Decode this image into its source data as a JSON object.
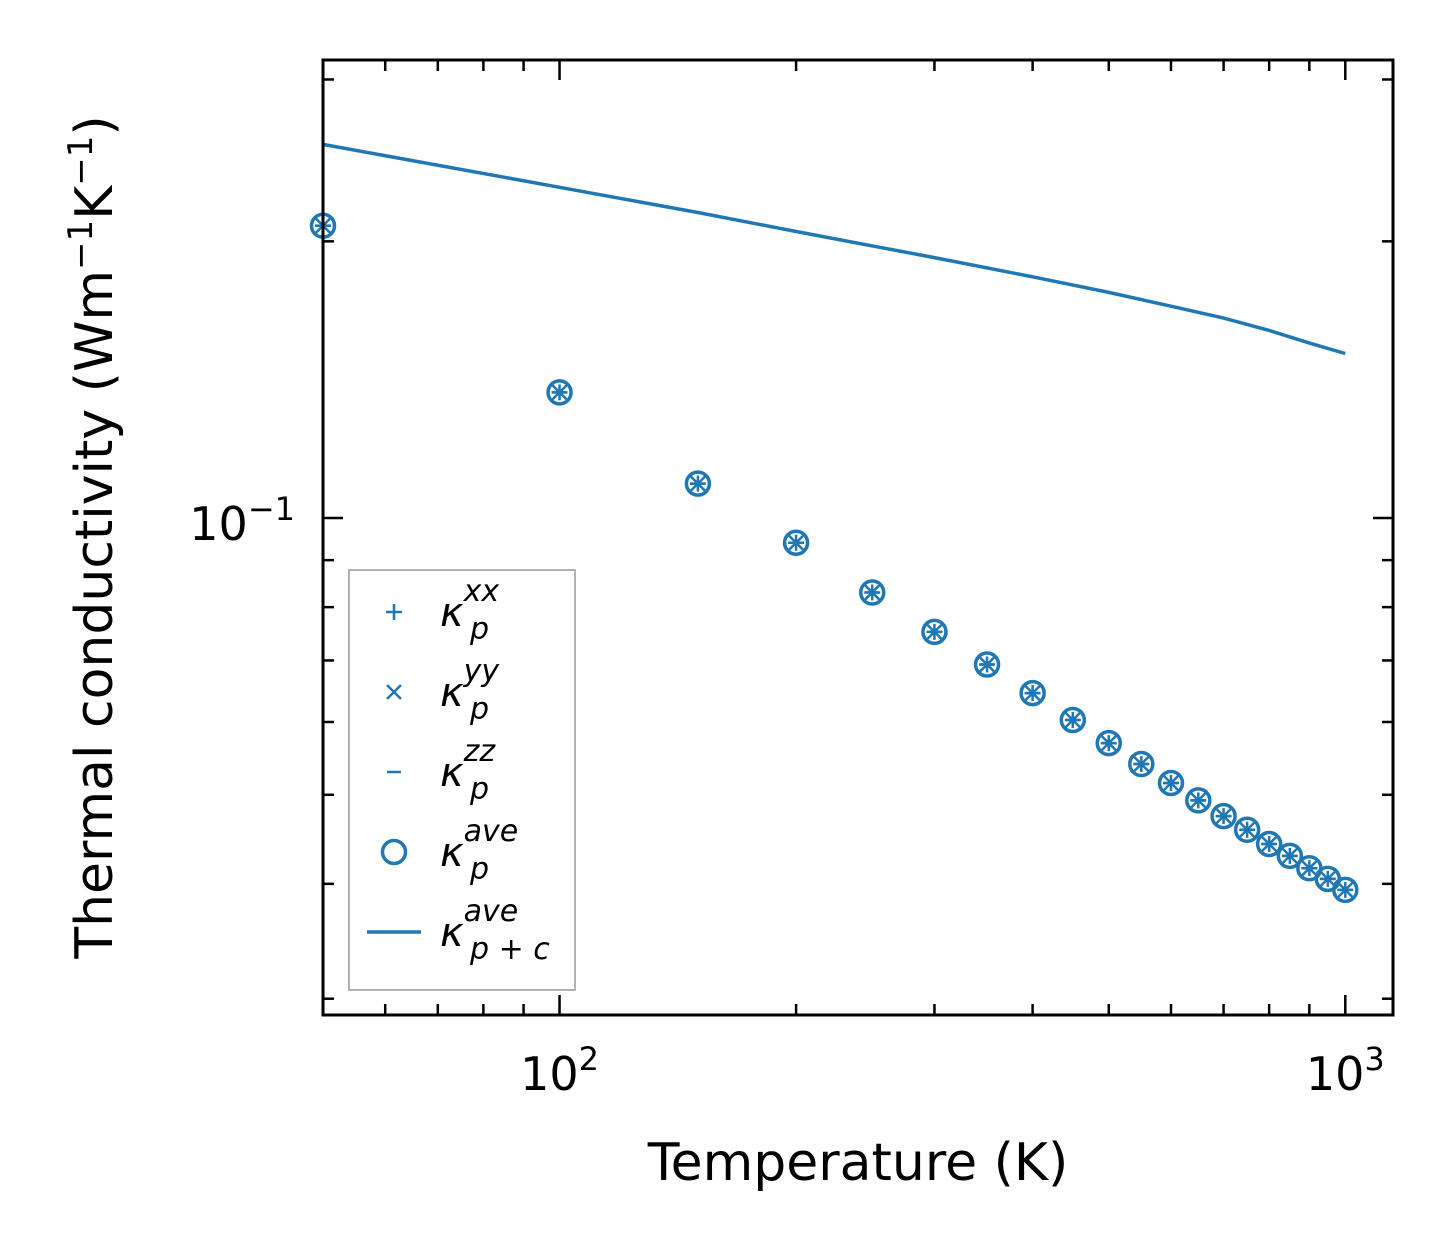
{
  "chart_data": {
    "type": "scatter",
    "xscale": "log",
    "yscale": "log",
    "xlim": [
      50,
      1150
    ],
    "ylim": [
      0.0288,
      0.315
    ],
    "xlabel": "Temperature (K)",
    "ylabel": "Thermal conductivity (Wm",
    "ylabel_unit_sup1": "−1",
    "ylabel_unit_mid": "K",
    "ylabel_unit_sup2": "−1",
    "ylabel_unit_end": ")",
    "x_ticks": [
      {
        "value": 100,
        "base": "10",
        "exp": "2"
      },
      {
        "value": 1000,
        "base": "10",
        "exp": "3"
      }
    ],
    "y_ticks": [
      {
        "value": 0.1,
        "base": "10",
        "exp": "−1"
      }
    ],
    "color": "#1f77b4",
    "x": [
      50,
      100,
      150,
      200,
      250,
      300,
      350,
      400,
      450,
      500,
      550,
      600,
      650,
      700,
      750,
      800,
      850,
      900,
      950,
      1000
    ],
    "series": [
      {
        "name": "kp_xx",
        "label_base": "κ",
        "label_sub": "p",
        "label_sup": "xx",
        "marker": "plus",
        "values": [
          0.208,
          0.137,
          0.109,
          0.094,
          0.083,
          0.0752,
          0.0693,
          0.0645,
          0.0603,
          0.0569,
          0.054,
          0.0515,
          0.0493,
          0.0474,
          0.0458,
          0.0442,
          0.0429,
          0.0416,
          0.0405,
          0.0394
        ]
      },
      {
        "name": "kp_yy",
        "label_base": "κ",
        "label_sub": "p",
        "label_sup": "yy",
        "marker": "x",
        "values": [
          0.208,
          0.137,
          0.109,
          0.094,
          0.083,
          0.0752,
          0.0693,
          0.0645,
          0.0603,
          0.0569,
          0.054,
          0.0515,
          0.0493,
          0.0474,
          0.0458,
          0.0442,
          0.0429,
          0.0416,
          0.0405,
          0.0394
        ]
      },
      {
        "name": "kp_zz",
        "label_base": "κ",
        "label_sub": "p",
        "label_sup": "zz",
        "marker": "hline",
        "values": [
          0.208,
          0.137,
          0.109,
          0.094,
          0.083,
          0.0752,
          0.0693,
          0.0645,
          0.0603,
          0.0569,
          0.054,
          0.0515,
          0.0493,
          0.0474,
          0.0458,
          0.0442,
          0.0429,
          0.0416,
          0.0405,
          0.0394
        ]
      },
      {
        "name": "kp_ave",
        "label_base": "κ",
        "label_sub": "p",
        "label_sup": "ave",
        "marker": "circle",
        "values": [
          0.208,
          0.137,
          0.109,
          0.094,
          0.083,
          0.0752,
          0.0693,
          0.0645,
          0.0603,
          0.0569,
          0.054,
          0.0515,
          0.0493,
          0.0474,
          0.0458,
          0.0442,
          0.0429,
          0.0416,
          0.0405,
          0.0394
        ]
      },
      {
        "name": "kpc_ave",
        "label_base": "κ",
        "label_sub": "p + c",
        "label_sup": "ave",
        "marker": "line",
        "x": [
          50,
          100,
          150,
          200,
          300,
          400,
          500,
          600,
          700,
          800,
          900,
          1000
        ],
        "values": [
          0.255,
          0.229,
          0.215,
          0.205,
          0.192,
          0.183,
          0.176,
          0.17,
          0.165,
          0.16,
          0.155,
          0.151
        ]
      }
    ],
    "legend": "lower-left"
  }
}
